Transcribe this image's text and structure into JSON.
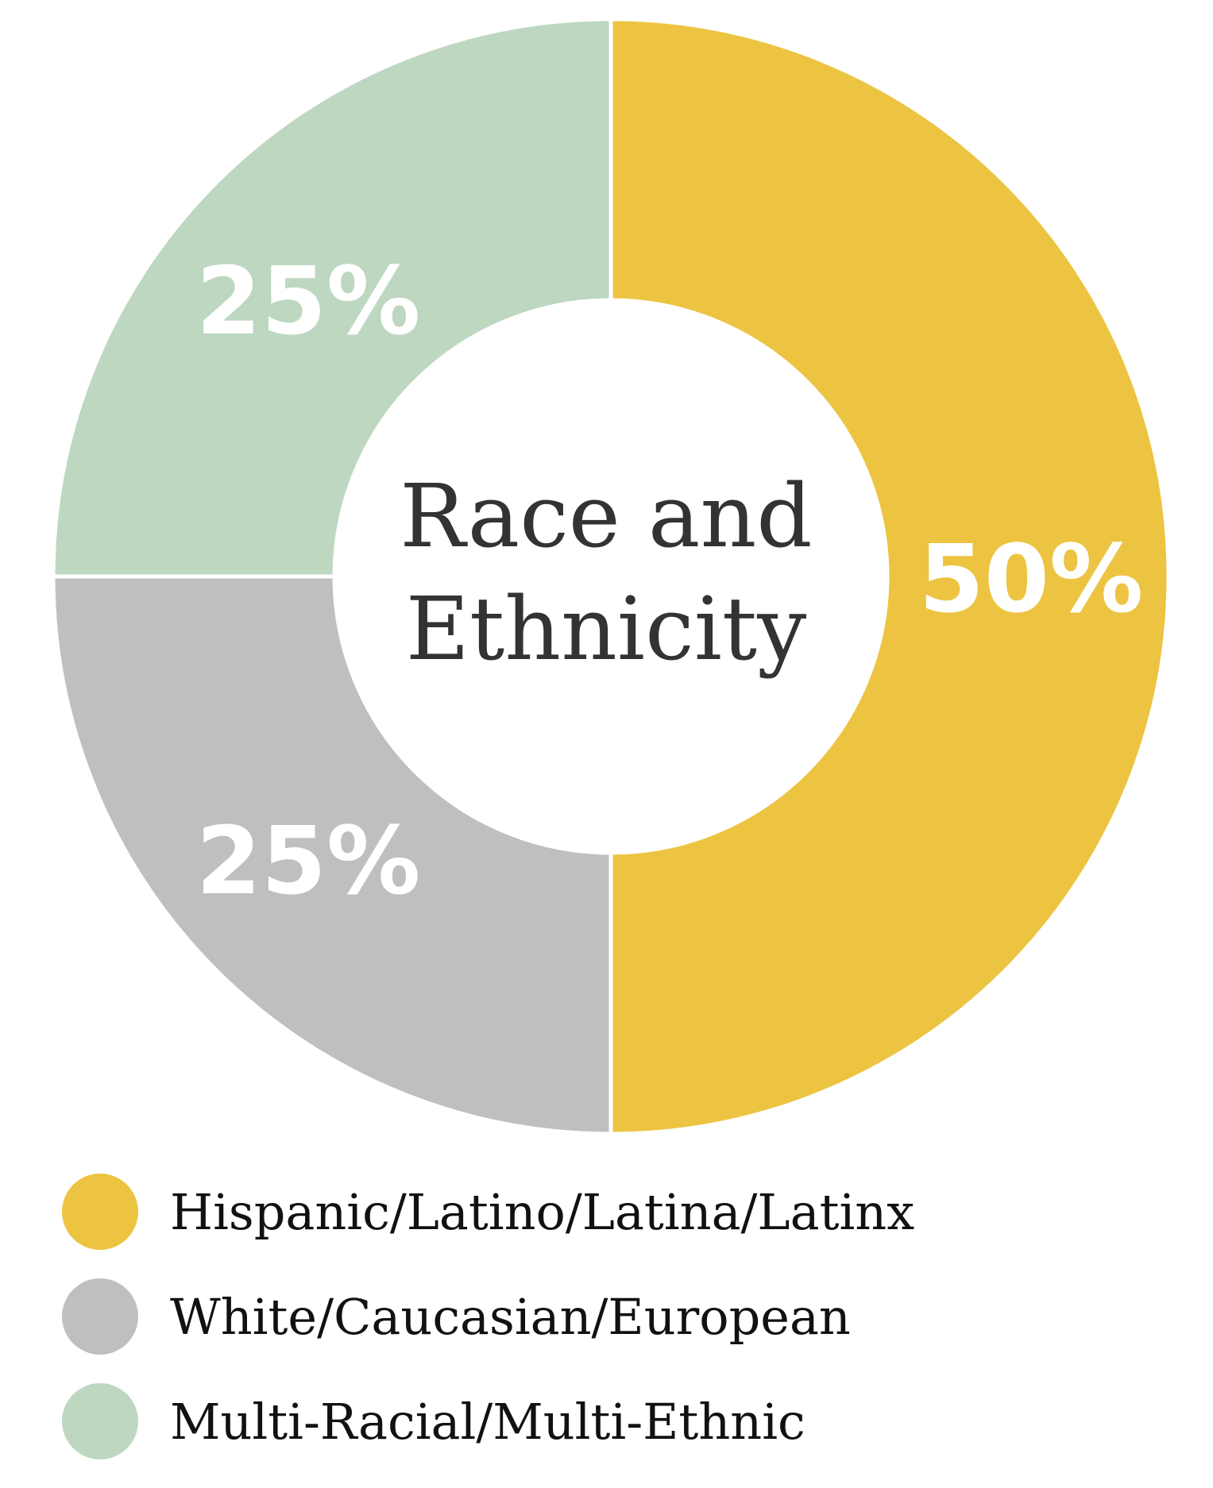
{
  "chart_data": {
    "type": "pie",
    "donut": true,
    "title": "",
    "center_label": [
      "Race and",
      "Ethnicity"
    ],
    "slices": [
      {
        "label": "Hispanic/Latino/Latina/Latinx",
        "value": 50,
        "display": "50%",
        "color": "#ecc441"
      },
      {
        "label": "White/Caucasian/European",
        "value": 25,
        "display": "25%",
        "color": "#bfbfbf"
      },
      {
        "label": "Multi-Racial/Multi-Ethnic",
        "value": 25,
        "display": "25%",
        "color": "#bdd7c0"
      }
    ],
    "legend_position": "bottom"
  }
}
